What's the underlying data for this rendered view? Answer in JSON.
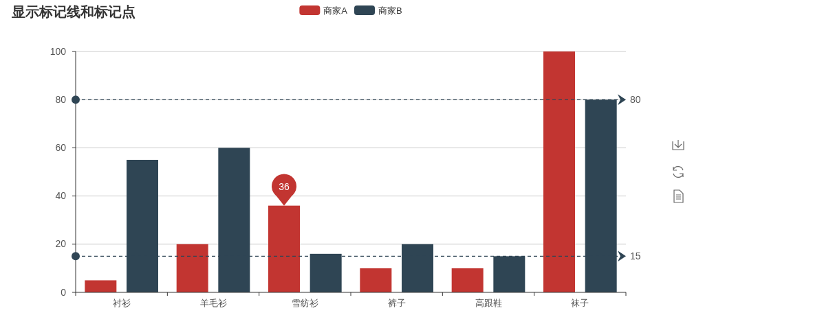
{
  "chart_data": {
    "type": "bar",
    "title": "显示标记线和标记点",
    "categories": [
      "衬衫",
      "羊毛衫",
      "雪纺衫",
      "裤子",
      "高跟鞋",
      "袜子"
    ],
    "series": [
      {
        "name": "商家A",
        "color": "#c23531",
        "values": [
          5,
          20,
          36,
          10,
          10,
          100
        ],
        "value_labels": [
          null,
          null,
          "36",
          null,
          null,
          null
        ]
      },
      {
        "name": "商家B",
        "color": "#2f4554",
        "values": [
          55,
          60,
          16,
          20,
          15,
          80
        ]
      }
    ],
    "ylim": [
      0,
      100
    ],
    "yticks": [
      0,
      20,
      40,
      60,
      80,
      100
    ],
    "grid": "y",
    "legend": "top",
    "ref_lines": [
      {
        "axis": "y",
        "value": 80,
        "label": "80",
        "color": "#2f4554",
        "line_style": "dashed"
      },
      {
        "axis": "y",
        "value": 15,
        "label": "15",
        "color": "#2f4554",
        "line_style": "dashed"
      }
    ]
  }
}
